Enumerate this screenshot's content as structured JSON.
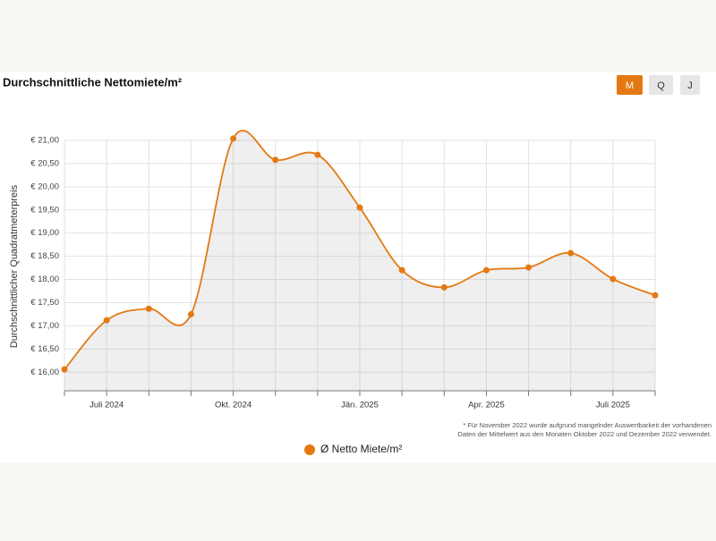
{
  "chart_data": {
    "type": "line",
    "title": "Durchschnittliche Nettomiete/m²",
    "ylabel": "Durchschnittlicher Quadratmeterpreis",
    "categories": [
      null,
      "Juli 2024",
      null,
      null,
      "Okt. 2024",
      null,
      null,
      "Jän. 2025",
      null,
      null,
      "Apr. 2025",
      null,
      null,
      "Juli 2025",
      null
    ],
    "series": [
      {
        "name": "Ø Netto Miete/m²",
        "color": "#e47911",
        "values": [
          16.06,
          17.12,
          17.37,
          17.25,
          21.04,
          20.58,
          20.69,
          19.55,
          18.2,
          17.83,
          18.2,
          18.26,
          18.57,
          18.01,
          17.66
        ]
      }
    ],
    "ylim": [
      15.6,
      21.0
    ],
    "yticks": [
      {
        "value": 16,
        "label": "€ 16,00"
      },
      {
        "value": 16.5,
        "label": "€ 16,50"
      },
      {
        "value": 17,
        "label": "€ 17,00"
      },
      {
        "value": 17.5,
        "label": "€ 17,50"
      },
      {
        "value": 18,
        "label": "€ 18,00"
      },
      {
        "value": 18.5,
        "label": "€ 18,50"
      },
      {
        "value": 19,
        "label": "€ 19,00"
      },
      {
        "value": 19.5,
        "label": "€ 19,50"
      },
      {
        "value": 20,
        "label": "€ 20,00"
      },
      {
        "value": 20.5,
        "label": "€ 20,50"
      },
      {
        "value": 21,
        "label": "€ 21,00"
      }
    ],
    "grid": true,
    "legend": "bottom",
    "annotations": [
      "* Für November 2022 wurde aufgrund mangelnder Auswertbarkeit der vorhandenen",
      "Daten der Mittelwert aus den Monaten Oktober 2022 und Dezember 2022 verwendet."
    ]
  },
  "controls": [
    "M",
    "Q",
    "J"
  ]
}
